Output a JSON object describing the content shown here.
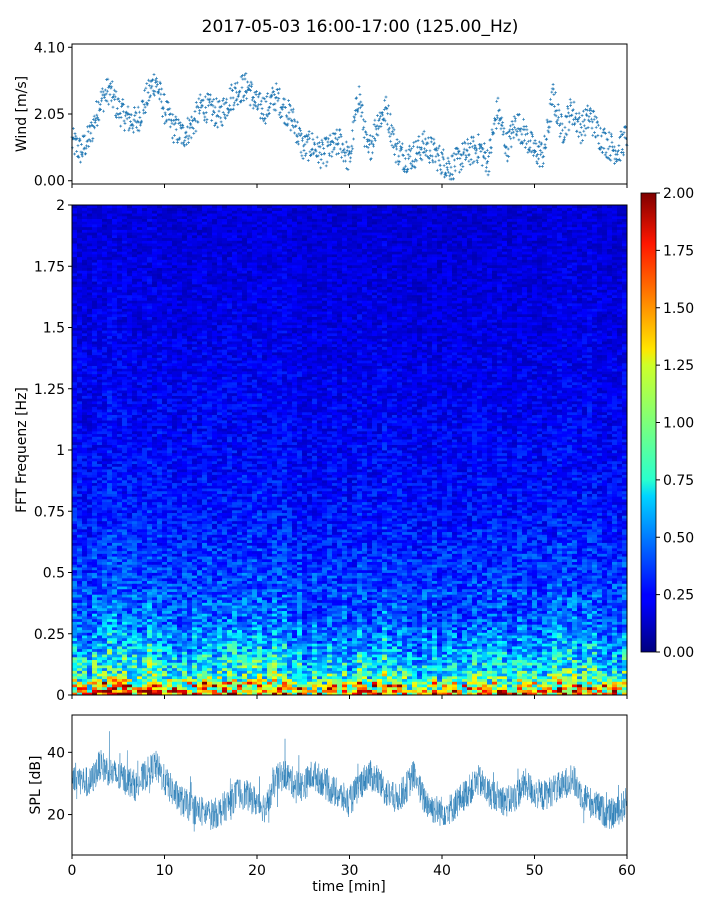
{
  "chart_data": [
    {
      "type": "scatter",
      "title": "2017-05-03 16:00-17:00 (125.00_Hz)",
      "xlabel": "",
      "ylabel": "Wind [m/s]",
      "xlim": [
        0,
        60
      ],
      "ylim": [
        -0.1,
        4.2
      ],
      "yticks": [
        "0.00",
        "2.05",
        "4.10"
      ],
      "ytick_values": [
        0.0,
        2.05,
        4.1
      ],
      "marker": "+",
      "color": "#1f77b4",
      "series": [
        {
          "x": [
            0,
            1,
            2,
            3,
            4,
            5,
            6,
            7,
            8,
            9,
            10,
            11,
            12,
            13,
            14,
            15,
            16,
            17,
            18,
            19,
            20,
            21,
            22,
            23,
            24,
            25,
            26,
            27,
            28,
            29,
            30,
            31,
            32,
            33,
            34,
            35,
            36,
            37,
            38,
            39,
            40,
            41,
            42,
            43,
            44,
            45,
            46,
            47,
            48,
            49,
            50,
            51,
            52,
            53,
            54,
            55,
            56,
            57,
            58,
            59,
            60
          ],
          "values": [
            1.2,
            0.9,
            1.4,
            2.4,
            2.8,
            2.2,
            1.9,
            1.8,
            2.5,
            3.1,
            2.2,
            1.6,
            1.4,
            1.7,
            2.3,
            2.2,
            2.0,
            2.5,
            2.8,
            2.9,
            2.3,
            2.2,
            2.6,
            2.2,
            1.8,
            1.0,
            1.1,
            0.8,
            1.0,
            1.2,
            0.6,
            2.7,
            0.8,
            1.8,
            2.2,
            1.0,
            0.7,
            0.8,
            1.1,
            0.9,
            0.6,
            0.4,
            0.7,
            0.9,
            1.0,
            0.6,
            2.2,
            1.0,
            1.8,
            1.4,
            0.9,
            0.8,
            2.6,
            1.5,
            2.2,
            1.6,
            2.0,
            1.4,
            1.1,
            0.9,
            1.4
          ]
        }
      ]
    },
    {
      "type": "heatmap",
      "xlabel": "",
      "ylabel": "FFT Frequenz [Hz]",
      "xlim": [
        0,
        60
      ],
      "ylim": [
        0,
        2
      ],
      "yticks": [
        "0",
        "0.25",
        "0.5",
        "0.75",
        "1",
        "1.25",
        "1.5",
        "1.75",
        "2"
      ],
      "ytick_values": [
        0,
        0.25,
        0.5,
        0.75,
        1,
        1.25,
        1.5,
        1.75,
        2
      ],
      "colormap": "jet",
      "color_range": [
        0,
        2
      ],
      "colorbar_ticks": [
        "0.00",
        "0.25",
        "0.50",
        "0.75",
        "1.00",
        "1.25",
        "1.50",
        "1.75",
        "2.00"
      ],
      "colorbar_tick_values": [
        0,
        0.25,
        0.5,
        0.75,
        1.0,
        1.25,
        1.5,
        1.75,
        2.0
      ],
      "profile_by_frequency": [
        {
          "freq": 0.0,
          "level": 1.6
        },
        {
          "freq": 0.05,
          "level": 1.1
        },
        {
          "freq": 0.1,
          "level": 0.85
        },
        {
          "freq": 0.2,
          "level": 0.65
        },
        {
          "freq": 0.3,
          "level": 0.5
        },
        {
          "freq": 0.5,
          "level": 0.38
        },
        {
          "freq": 0.75,
          "level": 0.3
        },
        {
          "freq": 1.0,
          "level": 0.26
        },
        {
          "freq": 1.5,
          "level": 0.21
        },
        {
          "freq": 2.0,
          "level": 0.18
        }
      ]
    },
    {
      "type": "line",
      "xlabel": "time [min]",
      "ylabel": "SPL [dB]",
      "xlim": [
        0,
        60
      ],
      "ylim": [
        7,
        52
      ],
      "xticks": [
        "0",
        "10",
        "20",
        "30",
        "40",
        "50",
        "60"
      ],
      "xtick_values": [
        0,
        10,
        20,
        30,
        40,
        50,
        60
      ],
      "yticks": [
        "20",
        "40"
      ],
      "ytick_values": [
        20,
        40
      ],
      "color": "#1f77b4",
      "series": [
        {
          "x": [
            0,
            1,
            2,
            3,
            4,
            5,
            6,
            7,
            8,
            9,
            10,
            11,
            12,
            13,
            14,
            15,
            16,
            17,
            18,
            19,
            20,
            21,
            22,
            23,
            24,
            25,
            26,
            27,
            28,
            29,
            30,
            31,
            32,
            33,
            34,
            35,
            36,
            37,
            38,
            39,
            40,
            41,
            42,
            43,
            44,
            45,
            46,
            47,
            48,
            49,
            50,
            51,
            52,
            53,
            54,
            55,
            56,
            57,
            58,
            59,
            60
          ],
          "values": [
            33,
            31,
            30,
            36,
            34,
            32,
            31,
            29,
            33,
            36,
            31,
            27,
            24,
            22,
            21,
            20,
            21,
            24,
            27,
            26,
            24,
            22,
            31,
            33,
            30,
            29,
            33,
            31,
            28,
            26,
            24,
            29,
            33,
            31,
            27,
            25,
            28,
            33,
            25,
            22,
            21,
            22,
            25,
            28,
            31,
            27,
            26,
            24,
            26,
            30,
            27,
            26,
            28,
            29,
            32,
            27,
            24,
            22,
            20,
            21,
            24
          ]
        }
      ]
    }
  ]
}
